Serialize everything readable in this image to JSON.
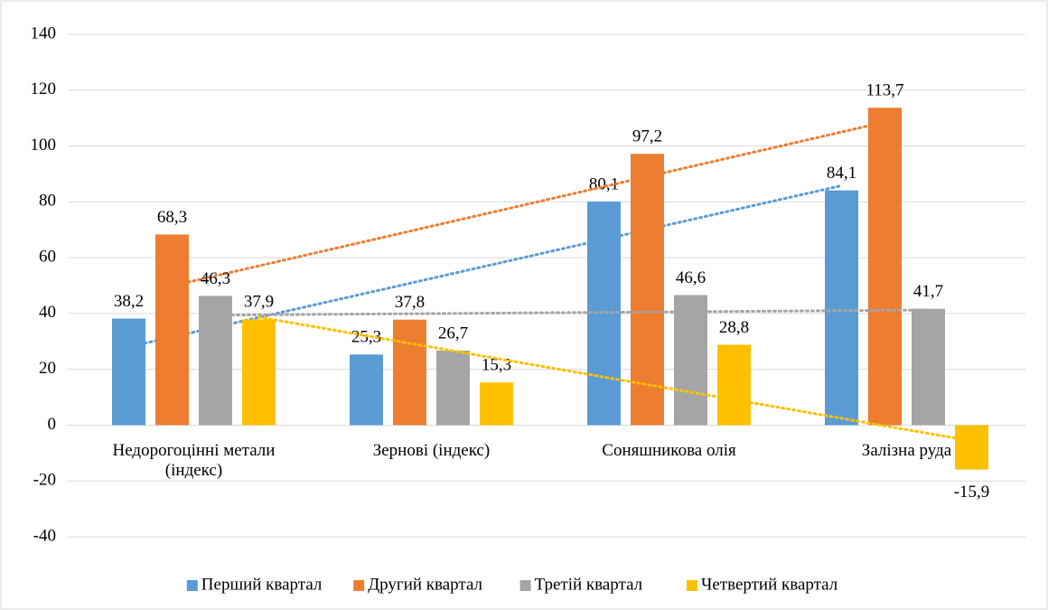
{
  "chart_data": {
    "type": "bar",
    "categories": [
      "Недорогоцінні метали (індекс)",
      "Зернові (індекс)",
      "Соняшникова олія",
      "Залізна руда"
    ],
    "series": [
      {
        "name": "Перший квартал",
        "color": "#5b9bd5",
        "values": [
          38.2,
          25.3,
          80.1,
          84.1
        ],
        "value_labels": [
          "38,2",
          "25,3",
          "80,1",
          "84,1"
        ]
      },
      {
        "name": "Другий квартал",
        "color": "#ed7d31",
        "values": [
          68.3,
          37.8,
          97.2,
          113.7
        ],
        "value_labels": [
          "68,3",
          "37,8",
          "97,2",
          "113,7"
        ]
      },
      {
        "name": "Третій квартал",
        "color": "#a5a5a5",
        "values": [
          46.3,
          26.7,
          46.6,
          41.7
        ],
        "value_labels": [
          "46,3",
          "26,7",
          "46,6",
          "41,7"
        ]
      },
      {
        "name": "Четвертий квартал",
        "color": "#ffc000",
        "values": [
          37.9,
          15.3,
          28.8,
          -15.9
        ],
        "value_labels": [
          "37,9",
          "15,3",
          "28,8",
          "-15,9"
        ]
      }
    ],
    "ylim": [
      -40,
      140
    ],
    "yticks": [
      -40,
      -20,
      0,
      20,
      40,
      60,
      80,
      100,
      120,
      140
    ],
    "grid": true,
    "trendline": "linear",
    "legend": "bottom"
  }
}
